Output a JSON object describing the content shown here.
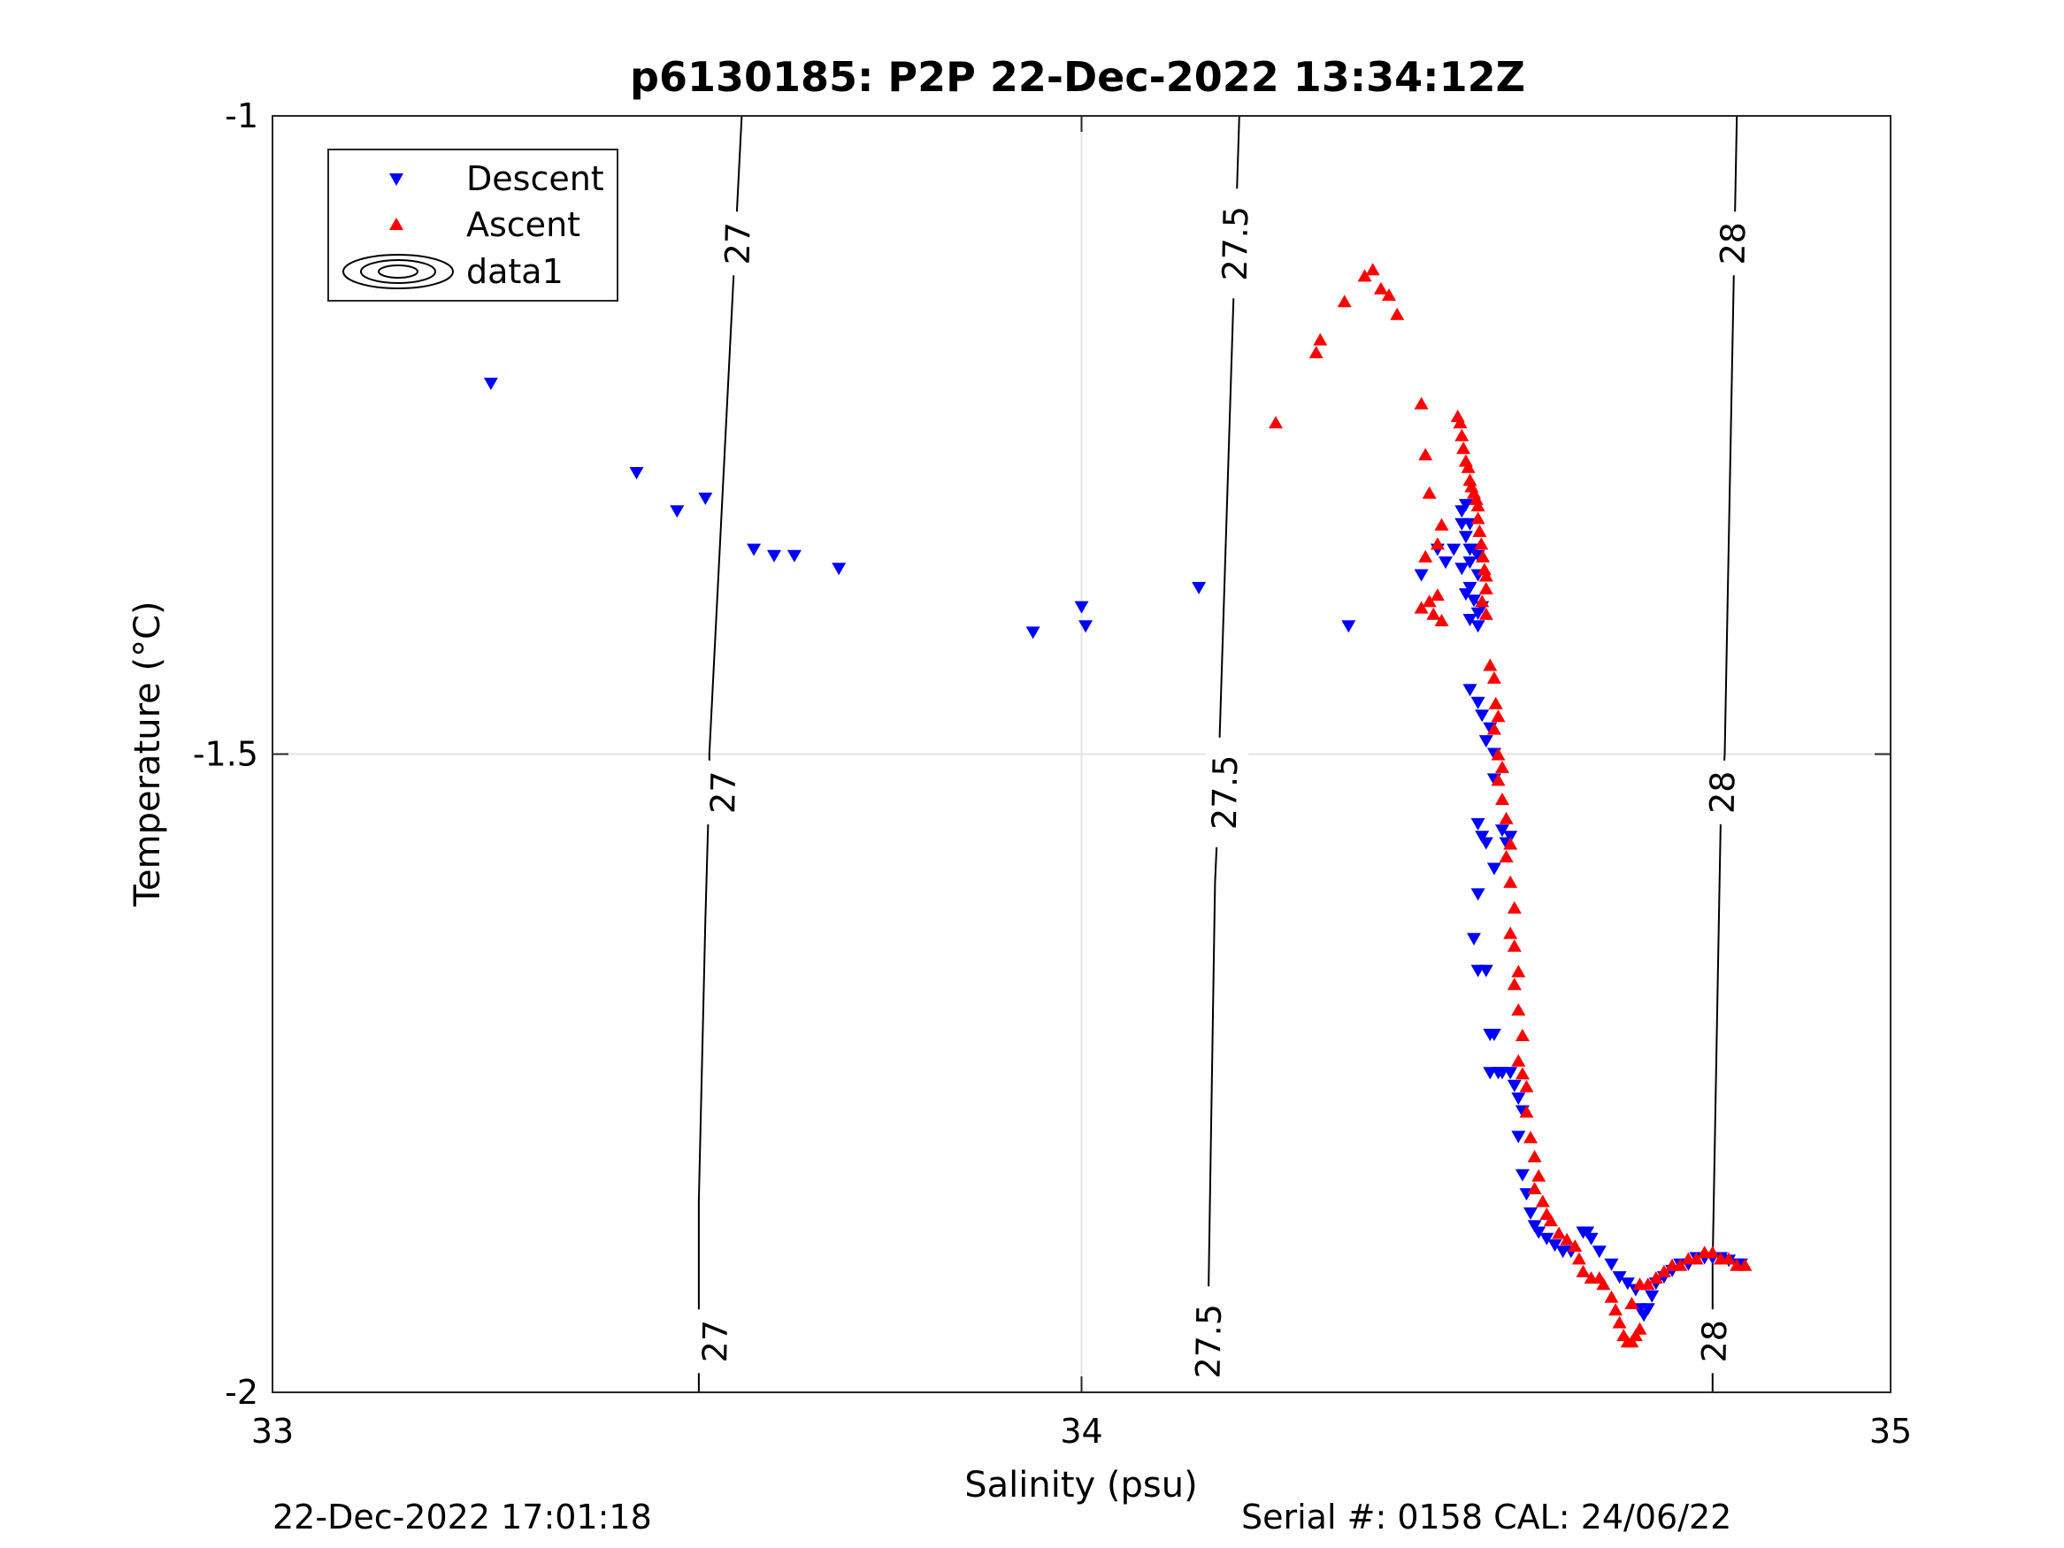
{
  "footer": {
    "left": "22-Dec-2022 17:01:18",
    "right": "Serial #: 0158  CAL: 24/06/22"
  },
  "chart_data": {
    "type": "scatter",
    "title": "p6130185: P2P 22-Dec-2022 13:34:12Z",
    "xlabel": "Salinity (psu)",
    "ylabel": "Temperature (°C)",
    "xlim": [
      33,
      35
    ],
    "ylim": [
      -2,
      -1
    ],
    "xticks": [
      33,
      34,
      35
    ],
    "xtick_labels": [
      "33",
      "34",
      "35"
    ],
    "yticks": [
      -2,
      -1.5,
      -1
    ],
    "ytick_labels": [
      "-2",
      "-1.5",
      "-1"
    ],
    "grid": true,
    "legend_position": "top-left",
    "legend": [
      "Descent",
      "Ascent",
      "data1"
    ],
    "colors": {
      "descent": "#0000ff",
      "ascent": "#ff0000",
      "contour": "#000000",
      "grid": "#e3e3e3"
    },
    "contours": [
      {
        "label": "27",
        "points": [
          [
            33.58,
            -1.0
          ],
          [
            33.54,
            -1.5
          ],
          [
            33.54,
            -1.52
          ],
          [
            33.535,
            -1.63
          ],
          [
            33.527,
            -1.85
          ],
          [
            33.527,
            -2.0
          ]
        ],
        "label_at": [
          [
            33.578,
            -1.1
          ],
          [
            33.56,
            -1.53
          ],
          [
            33.55,
            -1.96
          ]
        ]
      },
      {
        "label": "27.5",
        "points": [
          [
            34.195,
            -1.0
          ],
          [
            34.17,
            -1.5
          ],
          [
            34.17,
            -1.53
          ],
          [
            34.165,
            -1.6
          ],
          [
            34.155,
            -2.0
          ]
        ],
        "label_at": [
          [
            34.193,
            -1.1
          ],
          [
            34.18,
            -1.53
          ],
          [
            34.16,
            -1.96
          ]
        ]
      },
      {
        "label": "28",
        "points": [
          [
            34.81,
            -1.0
          ],
          [
            34.795,
            -1.5
          ],
          [
            34.79,
            -1.55
          ],
          [
            34.78,
            -1.9
          ],
          [
            34.78,
            -2.0
          ]
        ],
        "label_at": [
          [
            34.808,
            -1.1
          ],
          [
            34.795,
            -1.53
          ],
          [
            34.785,
            -1.96
          ]
        ]
      }
    ],
    "series": [
      {
        "name": "Descent",
        "marker": "triangle-down",
        "points": [
          [
            33.27,
            -1.21
          ],
          [
            33.45,
            -1.28
          ],
          [
            33.5,
            -1.31
          ],
          [
            33.535,
            -1.3
          ],
          [
            33.595,
            -1.34
          ],
          [
            33.62,
            -1.345
          ],
          [
            33.645,
            -1.345
          ],
          [
            33.7,
            -1.355
          ],
          [
            33.94,
            -1.405
          ],
          [
            34.0,
            -1.385
          ],
          [
            34.005,
            -1.4
          ],
          [
            34.145,
            -1.37
          ],
          [
            34.33,
            -1.4
          ],
          [
            34.42,
            -1.36
          ],
          [
            34.44,
            -1.34
          ],
          [
            34.45,
            -1.35
          ],
          [
            34.47,
            -1.355
          ],
          [
            34.46,
            -1.34
          ],
          [
            34.48,
            -1.34
          ],
          [
            34.47,
            -1.32
          ],
          [
            34.475,
            -1.33
          ],
          [
            34.48,
            -1.35
          ],
          [
            34.49,
            -1.36
          ],
          [
            34.48,
            -1.37
          ],
          [
            34.485,
            -1.38
          ],
          [
            34.49,
            -1.39
          ],
          [
            34.495,
            -1.385
          ],
          [
            34.47,
            -1.31
          ],
          [
            34.475,
            -1.305
          ],
          [
            34.48,
            -1.32
          ],
          [
            34.485,
            -1.34
          ],
          [
            34.49,
            -1.345
          ],
          [
            34.475,
            -1.375
          ],
          [
            34.48,
            -1.395
          ],
          [
            34.49,
            -1.4
          ],
          [
            34.48,
            -1.45
          ],
          [
            34.49,
            -1.46
          ],
          [
            34.495,
            -1.47
          ],
          [
            34.5,
            -1.49
          ],
          [
            34.505,
            -1.48
          ],
          [
            34.51,
            -1.5
          ],
          [
            34.51,
            -1.52
          ],
          [
            34.49,
            -1.555
          ],
          [
            34.495,
            -1.565
          ],
          [
            34.5,
            -1.57
          ],
          [
            34.52,
            -1.56
          ],
          [
            34.525,
            -1.57
          ],
          [
            34.53,
            -1.565
          ],
          [
            34.51,
            -1.59
          ],
          [
            34.49,
            -1.61
          ],
          [
            34.485,
            -1.645
          ],
          [
            34.49,
            -1.67
          ],
          [
            34.5,
            -1.67
          ],
          [
            34.505,
            -1.72
          ],
          [
            34.51,
            -1.72
          ],
          [
            34.505,
            -1.75
          ],
          [
            34.515,
            -1.75
          ],
          [
            34.52,
            -1.75
          ],
          [
            34.53,
            -1.75
          ],
          [
            34.535,
            -1.76
          ],
          [
            34.54,
            -1.77
          ],
          [
            34.545,
            -1.78
          ],
          [
            34.54,
            -1.8
          ],
          [
            34.545,
            -1.83
          ],
          [
            34.55,
            -1.845
          ],
          [
            34.555,
            -1.86
          ],
          [
            34.56,
            -1.87
          ],
          [
            34.565,
            -1.875
          ],
          [
            34.575,
            -1.88
          ],
          [
            34.585,
            -1.885
          ],
          [
            34.595,
            -1.89
          ],
          [
            34.605,
            -1.89
          ],
          [
            34.62,
            -1.875
          ],
          [
            34.625,
            -1.875
          ],
          [
            34.63,
            -1.88
          ],
          [
            34.64,
            -1.89
          ],
          [
            34.655,
            -1.9
          ],
          [
            34.665,
            -1.91
          ],
          [
            34.675,
            -1.915
          ],
          [
            34.685,
            -1.92
          ],
          [
            34.69,
            -1.935
          ],
          [
            34.695,
            -1.94
          ],
          [
            34.7,
            -1.935
          ],
          [
            34.705,
            -1.925
          ],
          [
            34.71,
            -1.915
          ],
          [
            34.72,
            -1.91
          ],
          [
            34.73,
            -1.905
          ],
          [
            34.74,
            -1.9
          ],
          [
            34.75,
            -1.9
          ],
          [
            34.76,
            -1.895
          ],
          [
            34.77,
            -1.895
          ],
          [
            34.78,
            -1.895
          ],
          [
            34.79,
            -1.895
          ],
          [
            34.8,
            -1.897
          ],
          [
            34.81,
            -1.9
          ],
          [
            34.815,
            -1.9
          ]
        ]
      },
      {
        "name": "Ascent",
        "marker": "triangle-up",
        "points": [
          [
            34.24,
            -1.24
          ],
          [
            34.29,
            -1.185
          ],
          [
            34.295,
            -1.175
          ],
          [
            34.325,
            -1.145
          ],
          [
            34.35,
            -1.125
          ],
          [
            34.36,
            -1.12
          ],
          [
            34.37,
            -1.135
          ],
          [
            34.38,
            -1.14
          ],
          [
            34.39,
            -1.155
          ],
          [
            34.42,
            -1.225
          ],
          [
            34.425,
            -1.265
          ],
          [
            34.43,
            -1.295
          ],
          [
            34.42,
            -1.385
          ],
          [
            34.43,
            -1.38
          ],
          [
            34.44,
            -1.375
          ],
          [
            34.435,
            -1.39
          ],
          [
            34.445,
            -1.395
          ],
          [
            34.425,
            -1.345
          ],
          [
            34.44,
            -1.335
          ],
          [
            34.445,
            -1.32
          ],
          [
            34.465,
            -1.235
          ],
          [
            34.468,
            -1.24
          ],
          [
            34.47,
            -1.25
          ],
          [
            34.472,
            -1.26
          ],
          [
            34.475,
            -1.27
          ],
          [
            34.478,
            -1.275
          ],
          [
            34.48,
            -1.285
          ],
          [
            34.482,
            -1.29
          ],
          [
            34.485,
            -1.295
          ],
          [
            34.488,
            -1.3
          ],
          [
            34.49,
            -1.305
          ],
          [
            34.49,
            -1.315
          ],
          [
            34.492,
            -1.325
          ],
          [
            34.494,
            -1.335
          ],
          [
            34.496,
            -1.345
          ],
          [
            34.498,
            -1.355
          ],
          [
            34.5,
            -1.36
          ],
          [
            34.5,
            -1.37
          ],
          [
            34.495,
            -1.38
          ],
          [
            34.5,
            -1.39
          ],
          [
            34.505,
            -1.43
          ],
          [
            34.51,
            -1.44
          ],
          [
            34.512,
            -1.46
          ],
          [
            34.515,
            -1.47
          ],
          [
            34.51,
            -1.48
          ],
          [
            34.515,
            -1.5
          ],
          [
            34.52,
            -1.51
          ],
          [
            34.515,
            -1.52
          ],
          [
            34.52,
            -1.535
          ],
          [
            34.525,
            -1.55
          ],
          [
            34.53,
            -1.57
          ],
          [
            34.525,
            -1.58
          ],
          [
            34.53,
            -1.6
          ],
          [
            34.535,
            -1.62
          ],
          [
            34.53,
            -1.64
          ],
          [
            34.535,
            -1.65
          ],
          [
            34.54,
            -1.67
          ],
          [
            34.535,
            -1.68
          ],
          [
            34.54,
            -1.7
          ],
          [
            34.545,
            -1.72
          ],
          [
            34.54,
            -1.74
          ],
          [
            34.545,
            -1.75
          ],
          [
            34.55,
            -1.76
          ],
          [
            34.55,
            -1.78
          ],
          [
            34.555,
            -1.8
          ],
          [
            34.56,
            -1.815
          ],
          [
            34.565,
            -1.83
          ],
          [
            34.56,
            -1.84
          ],
          [
            34.57,
            -1.85
          ],
          [
            34.575,
            -1.86
          ],
          [
            34.58,
            -1.865
          ],
          [
            34.59,
            -1.875
          ],
          [
            34.6,
            -1.88
          ],
          [
            34.61,
            -1.885
          ],
          [
            34.615,
            -1.895
          ],
          [
            34.62,
            -1.905
          ],
          [
            34.63,
            -1.91
          ],
          [
            34.64,
            -1.91
          ],
          [
            34.645,
            -1.915
          ],
          [
            34.655,
            -1.925
          ],
          [
            34.66,
            -1.935
          ],
          [
            34.665,
            -1.945
          ],
          [
            34.67,
            -1.955
          ],
          [
            34.675,
            -1.96
          ],
          [
            34.68,
            -1.96
          ],
          [
            34.685,
            -1.955
          ],
          [
            34.69,
            -1.95
          ],
          [
            34.68,
            -1.93
          ],
          [
            34.69,
            -1.915
          ],
          [
            34.7,
            -1.915
          ],
          [
            34.71,
            -1.91
          ],
          [
            34.72,
            -1.905
          ],
          [
            34.73,
            -1.9
          ],
          [
            34.74,
            -1.9
          ],
          [
            34.75,
            -1.895
          ],
          [
            34.76,
            -1.895
          ],
          [
            34.77,
            -1.89
          ],
          [
            34.78,
            -1.89
          ],
          [
            34.79,
            -1.895
          ],
          [
            34.8,
            -1.895
          ],
          [
            34.81,
            -1.9
          ],
          [
            34.82,
            -1.9
          ]
        ]
      }
    ]
  }
}
